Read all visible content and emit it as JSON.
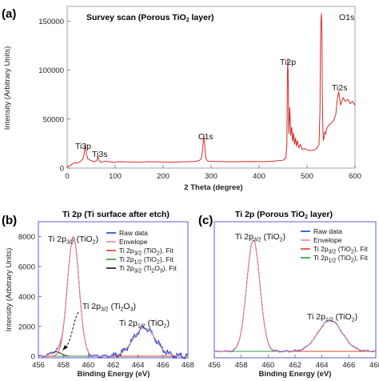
{
  "chart_data": [
    {
      "panel_label": "(a)",
      "type": "line",
      "title": "Survey scan (Porous TiO",
      "title_sub": "2",
      "title_end": " layer)",
      "xlabel": "2 Theta (degree)",
      "ylabel": "Intensity (Arbitrary Units)",
      "xlim": [
        0,
        600
      ],
      "ylim": [
        0,
        165000
      ],
      "xticks": [
        0,
        100,
        200,
        300,
        400,
        500,
        600
      ],
      "yticks": [
        0,
        50000,
        100000,
        150000
      ],
      "series": [
        {
          "color": "#d42a2a",
          "x": [
            0,
            6,
            10,
            16,
            22,
            28,
            32,
            35,
            37,
            38,
            40,
            43,
            48,
            53,
            58,
            62,
            64,
            66,
            70,
            80,
            95,
            110,
            130,
            150,
            170,
            190,
            210,
            230,
            250,
            265,
            275,
            280,
            282,
            284,
            285,
            286,
            288,
            290,
            293,
            298,
            310,
            330,
            350,
            380,
            410,
            430,
            450,
            456,
            458,
            459,
            460,
            461,
            462,
            463,
            464,
            466,
            468,
            470,
            472,
            474,
            476,
            478,
            480,
            483,
            486,
            490,
            495,
            500,
            505,
            510,
            515,
            520,
            525,
            527,
            528,
            529,
            530,
            531,
            532,
            533,
            534,
            535,
            537,
            539,
            541,
            543,
            546,
            550,
            555,
            560,
            563,
            566,
            570,
            575,
            580,
            585,
            590,
            595,
            600
          ],
          "y": [
            1000,
            2500,
            4000,
            5500,
            5000,
            7000,
            9000,
            13000,
            21000,
            24000,
            15000,
            9500,
            8000,
            7000,
            6500,
            8000,
            12000,
            8000,
            6000,
            7000,
            6000,
            6500,
            6200,
            6000,
            6500,
            6300,
            6000,
            6200,
            6500,
            6800,
            7500,
            10000,
            18000,
            30000,
            34000,
            28000,
            14000,
            9000,
            7200,
            7000,
            6800,
            6500,
            6500,
            6800,
            6500,
            7000,
            8000,
            10000,
            25000,
            95000,
            112000,
            82000,
            35000,
            48000,
            62000,
            33000,
            42000,
            27000,
            36000,
            24000,
            31000,
            22000,
            28000,
            21000,
            24000,
            19000,
            20000,
            18500,
            18000,
            18000,
            18500,
            20000,
            24000,
            60000,
            125000,
            150000,
            158000,
            140000,
            70000,
            40000,
            28000,
            30000,
            37000,
            35000,
            40000,
            42000,
            44000,
            46000,
            48000,
            55000,
            70000,
            78000,
            64000,
            72000,
            68000,
            70000,
            66000,
            68000,
            64000
          ]
        }
      ],
      "annotations": [
        "Ti3p",
        "Ti3s",
        "C1s",
        "Ti2p",
        "O1s",
        "Ti2s"
      ]
    },
    {
      "panel_label": "(b)",
      "type": "line",
      "title": "Ti 2p (Ti surface after etch)",
      "xlabel": "Binding Energy (eV)",
      "ylabel": "Intensity (Arbitrary Units)",
      "xlim": [
        456,
        468
      ],
      "ylim": [
        -100,
        9000
      ],
      "xticks": [
        456,
        458,
        460,
        462,
        464,
        466,
        468
      ],
      "yticks": [
        0,
        2000,
        4000,
        6000,
        8000
      ],
      "legend": {
        "position": "right",
        "items": [
          {
            "parts": [
              {
                "t": "Raw data"
              }
            ],
            "color": "#1f3ad6"
          },
          {
            "parts": [
              {
                "t": "Envelope"
              }
            ],
            "color": "#e08aa6"
          },
          {
            "parts": [
              {
                "t": "Ti 2p"
              },
              {
                "t": "3/2",
                "sub": true
              },
              {
                "t": " (TiO"
              },
              {
                "t": "2",
                "sub": true
              },
              {
                "t": "), Fit"
              }
            ],
            "color": "#e03a2a"
          },
          {
            "parts": [
              {
                "t": "Ti 2p"
              },
              {
                "t": "1/2",
                "sub": true
              },
              {
                "t": " (TiO"
              },
              {
                "t": "2",
                "sub": true
              },
              {
                "t": "), Fit"
              }
            ],
            "color": "#2a9a3a"
          },
          {
            "parts": [
              {
                "t": "Ti 2p"
              },
              {
                "t": "3/2",
                "sub": true
              },
              {
                "t": " (Ti"
              },
              {
                "t": "2",
                "sub": true
              },
              {
                "t": "O"
              },
              {
                "t": "3",
                "sub": true
              },
              {
                "t": "), Fit"
              }
            ],
            "color": "#111111"
          }
        ]
      },
      "peaks": [
        {
          "center": 458.8,
          "height": 8000,
          "fwhm": 1.1
        },
        {
          "center": 464.5,
          "height": 1900,
          "fwhm": 2.1
        },
        {
          "center": 457.4,
          "height": 300,
          "fwhm": 1.0
        }
      ],
      "annotations": [
        {
          "parts": [
            {
              "t": "Ti 2p"
            },
            {
              "t": "3/2",
              "sub": true
            },
            {
              "t": " (TiO"
            },
            {
              "t": "2",
              "sub": true
            },
            {
              "t": ")"
            }
          ]
        },
        {
          "parts": [
            {
              "t": "Ti 2p"
            },
            {
              "t": "3/2",
              "sub": true
            },
            {
              "t": " (Ti"
            },
            {
              "t": "2",
              "sub": true
            },
            {
              "t": "O"
            },
            {
              "t": "3",
              "sub": true
            },
            {
              "t": ")"
            }
          ]
        },
        {
          "parts": [
            {
              "t": "Ti 2p"
            },
            {
              "t": "1/2",
              "sub": true
            },
            {
              "t": " (TiO"
            },
            {
              "t": "2",
              "sub": true
            },
            {
              "t": ")"
            }
          ]
        }
      ]
    },
    {
      "panel_label": "(c)",
      "type": "line",
      "title": "Ti 2p (Porous TiO",
      "title_sub": "2",
      "title_end": " layer)",
      "xlabel": "Binding Energy (eV)",
      "xlim": [
        456,
        468
      ],
      "ylim": [
        -5,
        100
      ],
      "xticks": [
        456,
        458,
        460,
        462,
        464,
        466,
        468
      ],
      "legend": {
        "position": "right",
        "items": [
          {
            "parts": [
              {
                "t": "Raw data"
              }
            ],
            "color": "#1f3ad6"
          },
          {
            "parts": [
              {
                "t": "Envelope"
              }
            ],
            "color": "#e08aa6"
          },
          {
            "parts": [
              {
                "t": "Ti 2p"
              },
              {
                "t": "3/2",
                "sub": true
              },
              {
                "t": " (TiO"
              },
              {
                "t": "2",
                "sub": true
              },
              {
                "t": "), Fit"
              }
            ],
            "color": "#e03a2a"
          },
          {
            "parts": [
              {
                "t": "Ti 2p"
              },
              {
                "t": "1/2",
                "sub": true
              },
              {
                "t": " (TiO"
              },
              {
                "t": "2",
                "sub": true
              },
              {
                "t": "), Fit"
              }
            ],
            "color": "#2a9a3a"
          }
        ]
      },
      "peaks": [
        {
          "center": 458.9,
          "height": 86,
          "fwhm": 1.15
        },
        {
          "center": 464.6,
          "height": 24,
          "fwhm": 2.1
        }
      ],
      "annotations": [
        {
          "parts": [
            {
              "t": "Ti 2p"
            },
            {
              "t": "3/2",
              "sub": true
            },
            {
              "t": " (TiO"
            },
            {
              "t": "2",
              "sub": true
            },
            {
              "t": ")"
            }
          ]
        },
        {
          "parts": [
            {
              "t": "Ti 2p"
            },
            {
              "t": "1/2",
              "sub": true
            },
            {
              "t": " (TiO"
            },
            {
              "t": "2",
              "sub": true
            },
            {
              "t": ")"
            }
          ]
        }
      ]
    }
  ]
}
